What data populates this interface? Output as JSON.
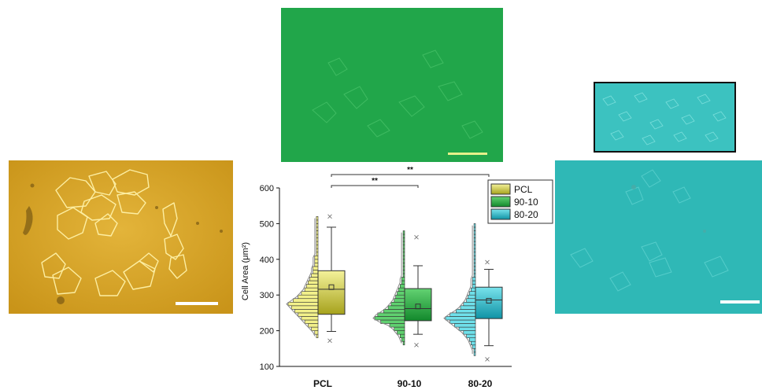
{
  "colors": {
    "pcl": "#c8c431",
    "pcl_light": "#f2f08a",
    "g9010": "#1faa3c",
    "g9010_light": "#5fd06f",
    "g8020": "#13b6c9",
    "g8020_light": "#6fe0ea",
    "yellow_image": "#dba62a",
    "green_image": "#21a64a",
    "cyan_image": "#2fb8b6"
  },
  "chart_data": {
    "type": "box-histogram",
    "ylabel": "Cell Area (μm²)",
    "ylim": [
      100,
      600
    ],
    "yticks": [
      100,
      200,
      300,
      400,
      500,
      600
    ],
    "categories": [
      "PCL",
      "90-10",
      "80-20"
    ],
    "series": [
      {
        "name": "PCL",
        "box": {
          "q1": 246,
          "median": 316,
          "q3": 368,
          "mean": 322,
          "whisker_low": 198,
          "whisker_high": 490
        },
        "outliers": [
          172,
          520
        ],
        "histogram": {
          "bin_start": 180,
          "bin_width": 10,
          "counts": [
            1,
            2,
            4,
            6,
            8,
            10,
            12,
            14,
            16,
            18,
            15,
            12,
            10,
            8,
            7,
            6,
            5,
            4,
            3,
            3,
            2,
            2,
            2,
            1,
            1,
            1,
            1,
            1,
            1,
            1,
            1,
            1,
            1,
            1
          ]
        }
      },
      {
        "name": "90-10",
        "box": {
          "q1": 228,
          "median": 262,
          "q3": 318,
          "mean": 268,
          "whisker_low": 190,
          "whisker_high": 382
        },
        "outliers": [
          160,
          462
        ],
        "histogram": {
          "bin_start": 160,
          "bin_width": 10,
          "counts": [
            1,
            2,
            3,
            5,
            7,
            10,
            16,
            20,
            18,
            14,
            11,
            9,
            7,
            6,
            5,
            4,
            3,
            2,
            2,
            1,
            1,
            1,
            1,
            1,
            1,
            1,
            1,
            1,
            1,
            1,
            1,
            1
          ]
        }
      },
      {
        "name": "80-20",
        "box": {
          "q1": 234,
          "median": 286,
          "q3": 322,
          "mean": 284,
          "whisker_low": 158,
          "whisker_high": 372
        },
        "outliers": [
          120,
          392
        ],
        "histogram": {
          "bin_start": 130,
          "bin_width": 10,
          "counts": [
            1,
            1,
            2,
            3,
            4,
            6,
            8,
            11,
            14,
            17,
            20,
            17,
            13,
            10,
            8,
            6,
            5,
            4,
            3,
            2,
            2,
            2,
            1,
            1,
            1,
            1,
            1,
            1,
            1,
            1,
            1,
            1,
            1,
            1,
            1,
            1,
            1
          ]
        }
      }
    ],
    "significance": [
      {
        "from": "PCL",
        "to": "90-10",
        "label": "**"
      },
      {
        "from": "PCL",
        "to": "80-20",
        "label": "**"
      }
    ],
    "legend_position": "top-right"
  }
}
